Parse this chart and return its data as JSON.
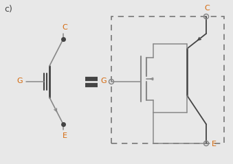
{
  "bg_color": "#e8e8e8",
  "label_c": "C",
  "label_g": "G",
  "label_e": "E",
  "orange": "#d4680a",
  "dark": "#444444",
  "gray": "#888888",
  "panel_label": "c)"
}
